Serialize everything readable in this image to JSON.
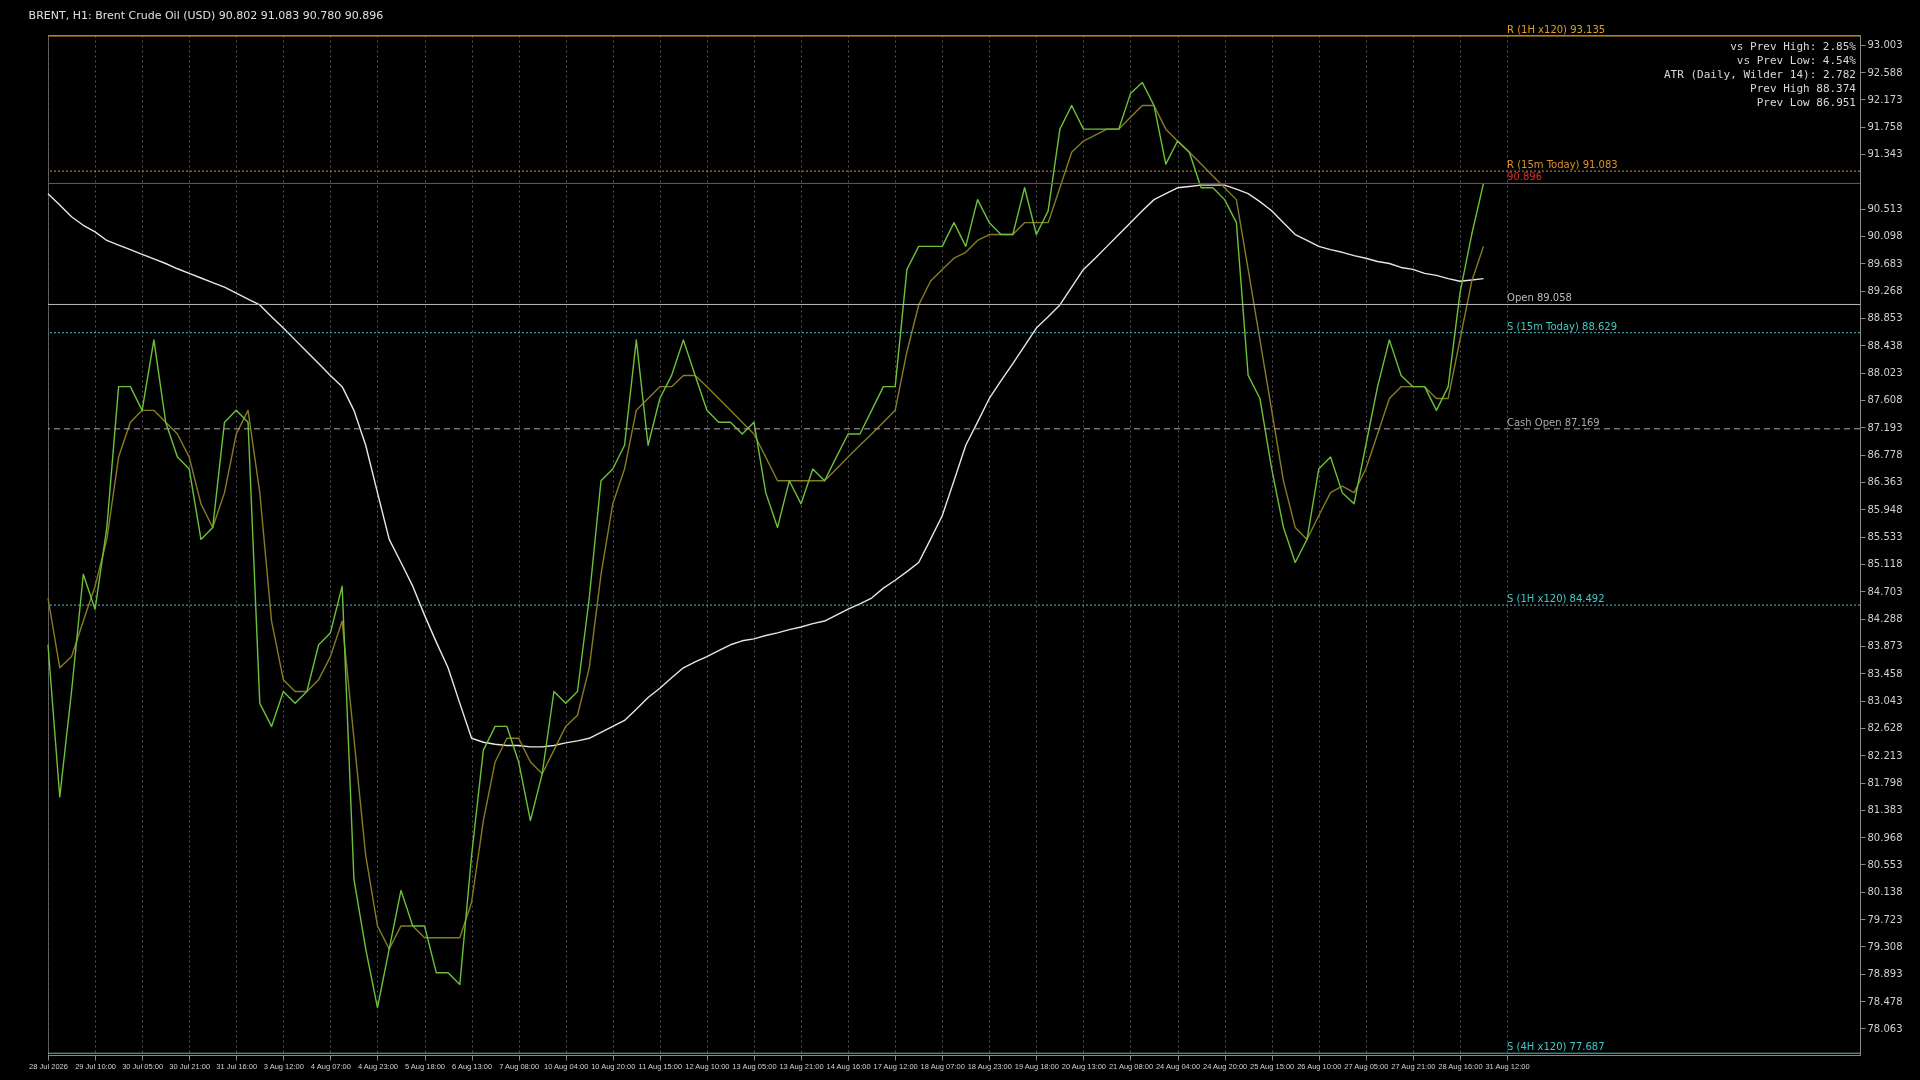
{
  "chart_data": {
    "type": "line",
    "title": "BRENT, H1:  Brent Crude Oil (USD)  90.802 91.083 90.780 90.896",
    "categories": [
      "28 Jul 2026",
      null,
      null,
      null,
      "29 Jul 10:00",
      null,
      null,
      null,
      "30 Jul 05:00",
      null,
      null,
      null,
      "30 Jul 21:00",
      null,
      null,
      null,
      "31 Jul 16:00",
      null,
      null,
      null,
      "3 Aug 12:00",
      null,
      null,
      null,
      "4 Aug 07:00",
      null,
      null,
      null,
      "4 Aug 23:00",
      null,
      null,
      null,
      "5 Aug 18:00",
      null,
      null,
      null,
      "6 Aug 13:00",
      null,
      null,
      null,
      "7 Aug 08:00",
      null,
      null,
      null,
      "10 Aug 04:00",
      null,
      null,
      null,
      "10 Aug 20:00",
      null,
      null,
      null,
      "11 Aug 15:00",
      null,
      null,
      null,
      "12 Aug 10:00",
      null,
      null,
      null,
      "13 Aug 05:00",
      null,
      null,
      null,
      "13 Aug 21:00",
      null,
      null,
      null,
      "14 Aug 16:00",
      null,
      null,
      null,
      "17 Aug 12:00",
      null,
      null,
      null,
      "18 Aug 07:00",
      null,
      null,
      null,
      "18 Aug 23:00",
      null,
      null,
      null,
      "19 Aug 18:00",
      null,
      null,
      null,
      "20 Aug 13:00",
      null,
      null,
      null,
      "21 Aug 08:00",
      null,
      null,
      null,
      "24 Aug 04:00",
      null,
      null,
      null,
      "24 Aug 20:00",
      null,
      null,
      null,
      "25 Aug 15:00",
      null,
      null,
      null,
      "26 Aug 10:00",
      null,
      null,
      null,
      "27 Aug 05:00",
      null,
      null,
      null,
      "27 Aug 21:00",
      null,
      null,
      null,
      "28 Aug 16:00",
      null,
      null,
      null,
      "31 Aug 12:00",
      null,
      null,
      null,
      null,
      null,
      null,
      null,
      null,
      null,
      null,
      null,
      null,
      null,
      null,
      null,
      null,
      null,
      null,
      null,
      null,
      null,
      null,
      null,
      null,
      null,
      null,
      null,
      null,
      null,
      null
    ],
    "series": [
      {
        "color": "#e6e6e6",
        "values": [
          90.74,
          90.57,
          90.39,
          90.26,
          90.16,
          90.03,
          89.96,
          89.89,
          89.82,
          89.75,
          89.68,
          89.6,
          89.53,
          89.46,
          89.39,
          89.32,
          89.23,
          89.14,
          89.05,
          88.87,
          88.7,
          88.52,
          88.34,
          88.16,
          87.98,
          87.81,
          87.45,
          86.92,
          86.2,
          85.49,
          85.14,
          84.78,
          84.34,
          83.93,
          83.54,
          83.0,
          82.47,
          82.41,
          82.38,
          82.36,
          82.36,
          82.34,
          82.34,
          82.36,
          82.4,
          82.43,
          82.47,
          82.56,
          82.65,
          82.74,
          82.91,
          83.09,
          83.23,
          83.39,
          83.54,
          83.63,
          83.71,
          83.8,
          83.89,
          83.95,
          83.98,
          84.03,
          84.07,
          84.12,
          84.16,
          84.21,
          84.25,
          84.34,
          84.43,
          84.51,
          84.6,
          84.75,
          84.87,
          85.0,
          85.14,
          85.49,
          85.85,
          86.38,
          86.92,
          87.27,
          87.63,
          87.9,
          88.16,
          88.43,
          88.7,
          88.87,
          89.05,
          89.32,
          89.59,
          89.76,
          89.94,
          90.12,
          90.3,
          90.48,
          90.65,
          90.74,
          90.83,
          90.85,
          90.87,
          90.87,
          90.87,
          90.81,
          90.74,
          90.62,
          90.48,
          90.3,
          90.12,
          90.03,
          89.94,
          89.89,
          89.85,
          89.8,
          89.76,
          89.71,
          89.68,
          89.62,
          89.59,
          89.53,
          89.5,
          89.45,
          89.41,
          89.43,
          89.45,
          null,
          null,
          null,
          null,
          null,
          null,
          null,
          null,
          null,
          null,
          null,
          null,
          null,
          null,
          null,
          null,
          null,
          null,
          null,
          null,
          null,
          null,
          null,
          null,
          null,
          null,
          null,
          null,
          null,
          null,
          null,
          null
        ]
      },
      {
        "color": "#857d24",
        "values": [
          84.6,
          83.54,
          83.71,
          84.25,
          84.78,
          85.49,
          86.74,
          87.27,
          87.45,
          87.45,
          87.27,
          87.09,
          86.74,
          86.03,
          85.67,
          86.2,
          87.09,
          87.45,
          86.2,
          84.25,
          83.36,
          83.18,
          83.18,
          83.36,
          83.71,
          84.25,
          82.47,
          80.69,
          79.62,
          79.27,
          79.62,
          79.62,
          79.44,
          79.44,
          79.44,
          79.44,
          79.98,
          81.22,
          82.11,
          82.47,
          82.47,
          82.11,
          81.93,
          82.29,
          82.65,
          82.82,
          83.54,
          84.96,
          86.03,
          86.56,
          87.45,
          87.63,
          87.81,
          87.81,
          87.98,
          87.98,
          87.81,
          87.63,
          87.45,
          87.27,
          87.09,
          86.74,
          86.38,
          86.38,
          86.38,
          86.38,
          86.38,
          86.56,
          86.74,
          86.92,
          87.09,
          87.27,
          87.45,
          88.34,
          89.05,
          89.41,
          89.59,
          89.76,
          89.85,
          90.03,
          90.12,
          90.12,
          90.12,
          90.3,
          90.3,
          90.3,
          90.83,
          91.37,
          91.54,
          91.63,
          91.72,
          91.72,
          91.9,
          92.08,
          92.08,
          91.72,
          91.54,
          91.37,
          91.19,
          91.01,
          90.83,
          90.65,
          89.59,
          88.52,
          87.45,
          86.38,
          85.67,
          85.49,
          85.85,
          86.2,
          86.3,
          86.2,
          86.56,
          87.09,
          87.63,
          87.81,
          87.81,
          87.81,
          87.63,
          87.63,
          88.52,
          89.41,
          89.94,
          null,
          null,
          null,
          null,
          null,
          null,
          null,
          null,
          null,
          null,
          null,
          null,
          null,
          null,
          null,
          null,
          null,
          null,
          null,
          null,
          null,
          null,
          null,
          null,
          null,
          null,
          null,
          null,
          null,
          null,
          null,
          null
        ]
      },
      {
        "color": "#6cc03a",
        "values": [
          83.89,
          81.58,
          83.18,
          84.96,
          84.43,
          85.67,
          87.81,
          87.81,
          87.45,
          88.52,
          87.27,
          86.74,
          86.56,
          85.49,
          85.67,
          87.27,
          87.45,
          87.27,
          83.0,
          82.65,
          83.18,
          83.0,
          83.18,
          83.89,
          84.07,
          84.78,
          80.33,
          79.27,
          78.38,
          79.27,
          80.16,
          79.62,
          79.62,
          78.91,
          78.91,
          78.73,
          80.69,
          82.29,
          82.65,
          82.65,
          82.11,
          81.22,
          81.93,
          83.18,
          83.0,
          83.18,
          84.6,
          86.38,
          86.56,
          86.92,
          88.52,
          86.92,
          87.63,
          87.98,
          88.52,
          87.98,
          87.45,
          87.27,
          87.27,
          87.09,
          87.27,
          86.2,
          85.67,
          86.38,
          86.03,
          86.56,
          86.38,
          86.74,
          87.09,
          87.09,
          87.45,
          87.81,
          87.81,
          89.59,
          89.94,
          89.94,
          89.94,
          90.3,
          89.94,
          90.65,
          90.3,
          90.12,
          90.12,
          90.83,
          90.12,
          90.48,
          91.72,
          92.08,
          91.72,
          91.72,
          91.72,
          91.72,
          92.26,
          92.43,
          92.08,
          91.19,
          91.54,
          91.37,
          90.83,
          90.83,
          90.65,
          90.3,
          87.98,
          87.63,
          86.56,
          85.67,
          85.14,
          85.49,
          86.56,
          86.74,
          86.2,
          86.03,
          86.92,
          87.81,
          88.52,
          87.98,
          87.81,
          87.81,
          87.45,
          87.81,
          89.23,
          90.12,
          90.896,
          null,
          null,
          null,
          null,
          null,
          null,
          null,
          null,
          null,
          null,
          null,
          null,
          null,
          null,
          null,
          null,
          null,
          null,
          null,
          null,
          null,
          null,
          null,
          null,
          null,
          null,
          null,
          null,
          null,
          null,
          null,
          null
        ]
      }
    ],
    "ylim": [
      77.66,
      93.15
    ],
    "yticks": [
      78.063,
      78.478,
      78.893,
      79.308,
      79.723,
      80.138,
      80.553,
      80.968,
      81.383,
      81.798,
      82.213,
      82.628,
      83.043,
      83.458,
      83.873,
      84.288,
      84.703,
      85.118,
      85.533,
      85.948,
      86.363,
      86.778,
      87.193,
      87.608,
      88.023,
      88.438,
      88.853,
      89.268,
      89.683,
      90.098,
      90.513,
      91.343,
      91.758,
      92.173,
      92.588,
      93.003
    ],
    "grid": "x",
    "ref_lines": [
      {
        "axis": "y",
        "value": 93.135,
        "label": "R (1H x120) 93.135",
        "color": "#e0a020",
        "line_style": "solid"
      },
      {
        "axis": "y",
        "value": 91.083,
        "label": "R (15m Today) 91.083",
        "color": "#d9922e",
        "line_style": "dotted"
      },
      {
        "axis": "y",
        "value": 90.896,
        "label": "90.896",
        "color": "#d03030",
        "line_style": "solid"
      },
      {
        "axis": "y",
        "value": 89.058,
        "label": "Open 89.058",
        "color": "#bbbbbb",
        "line_style": "solid"
      },
      {
        "axis": "y",
        "value": 88.629,
        "label": "S (15m Today) 88.629",
        "color": "#40c8c8",
        "line_style": "dotted"
      },
      {
        "axis": "y",
        "value": 87.169,
        "label": "Cash Open 87.169",
        "color": "#aaaaaa",
        "line_style": "dashed"
      },
      {
        "axis": "y",
        "value": 84.492,
        "label": "S (1H x120) 84.492",
        "color": "#40c8c8",
        "line_style": "dotted"
      },
      {
        "axis": "y",
        "value": 77.687,
        "label": "S (4H x120) 77.687",
        "color": "#40c8c8",
        "line_style": "solid"
      }
    ],
    "annotations": [
      "vs Prev High: 2.85%",
      "vs Prev Low: 4.54%",
      "ATR (Daily, Wilder 14): 2.782",
      "Prev High 88.374",
      "Prev Low 86.951"
    ]
  }
}
